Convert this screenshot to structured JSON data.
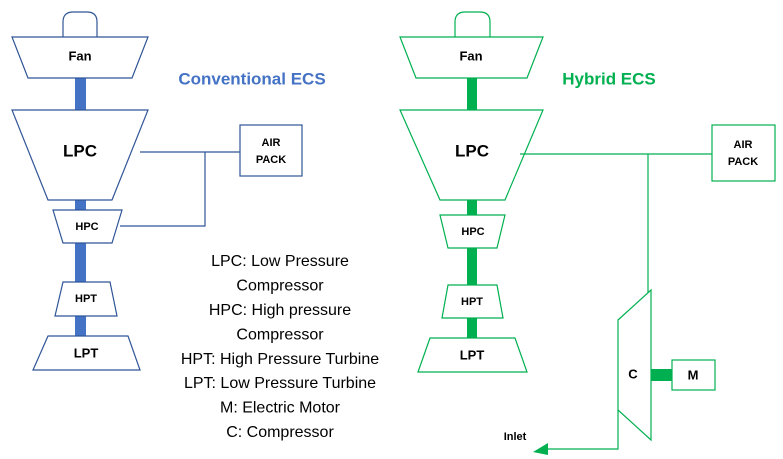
{
  "conventional": {
    "title": "Conventional ECS",
    "components": {
      "fan": "Fan",
      "lpc": "LPC",
      "hpc": "HPC",
      "hpt": "HPT",
      "lpt": "LPT",
      "air_pack": [
        "AIR",
        "PACK"
      ]
    }
  },
  "hybrid": {
    "title": "Hybrid ECS",
    "components": {
      "fan": "Fan",
      "lpc": "LPC",
      "hpc": "HPC",
      "hpt": "HPT",
      "lpt": "LPT",
      "air_pack": [
        "AIR",
        "PACK"
      ],
      "compressor": "C",
      "motor": "M",
      "inlet": "Inlet"
    }
  },
  "legend": [
    "LPC: Low Pressure",
    "Compressor",
    "HPC: High pressure",
    "Compressor",
    "HPT: High Pressure Turbine",
    "LPT: Low Pressure Turbine",
    "M: Electric Motor",
    "C: Compressor"
  ]
}
